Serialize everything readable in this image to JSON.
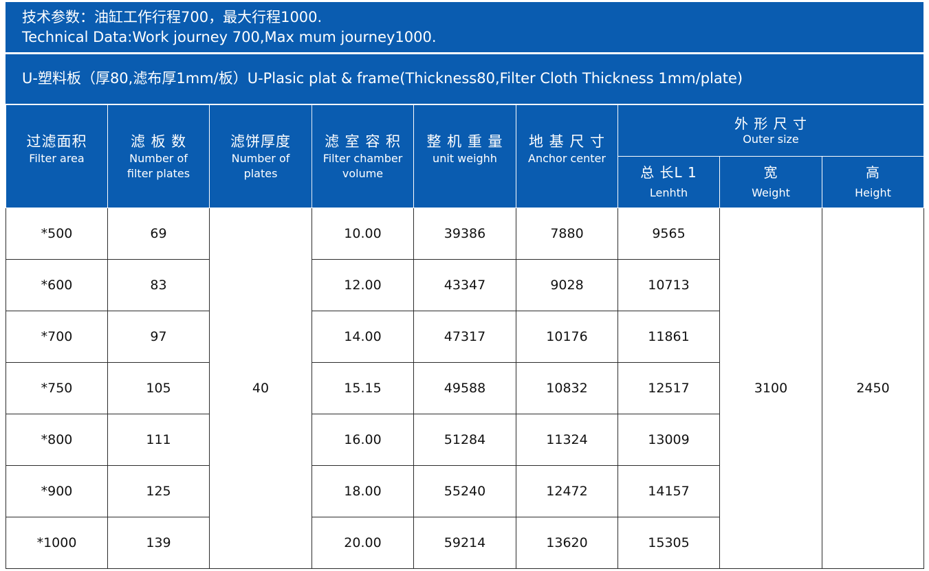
{
  "header": {
    "line_cn": "技术参数：油缸工作行程700，最大行程1000.",
    "line_en": "Technical Data:Work journey 700,Max mum journey1000.",
    "subtitle": "U-塑料板（厚80,滤布厚1mm/板）U-Plasic plat & frame(Thickness80,Filter Cloth Thickness 1mm/plate)"
  },
  "columns": {
    "filter_area": {
      "cn": "过滤面积",
      "en": "Filter area"
    },
    "num_plates": {
      "cn": "滤 板 数",
      "en_1": "Number of",
      "en_2": "filter plates"
    },
    "cake_thickness": {
      "cn": "滤饼厚度",
      "en_1": "Number of",
      "en_2": "plates"
    },
    "chamber_volume": {
      "cn": "滤 室 容 积",
      "en_1": "Filter chamber",
      "en_2": "volume"
    },
    "unit_weight": {
      "cn": "整 机 重 量",
      "en": "unit weighh"
    },
    "anchor": {
      "cn": "地 基 尺 寸",
      "en": "Anchor  center"
    },
    "outer": {
      "cn": "外 形 尺 寸",
      "en": "Outer size"
    },
    "length": {
      "cn": "总 长L 1",
      "en": "Lenhth"
    },
    "width": {
      "cn": "宽",
      "en": "Weight"
    },
    "height": {
      "cn": "高",
      "en": "Height"
    }
  },
  "rows": [
    {
      "area": "*500",
      "plates": "69",
      "volume": "10.00",
      "weight": "39386",
      "anchor": "7880",
      "length": "9565"
    },
    {
      "area": "*600",
      "plates": "83",
      "volume": "12.00",
      "weight": "43347",
      "anchor": "9028",
      "length": "10713"
    },
    {
      "area": "*700",
      "plates": "97",
      "volume": "14.00",
      "weight": "47317",
      "anchor": "10176",
      "length": "11861"
    },
    {
      "area": "*750",
      "plates": "105",
      "volume": "15.15",
      "weight": "49588",
      "anchor": "10832",
      "length": "12517"
    },
    {
      "area": "*800",
      "plates": "111",
      "volume": "16.00",
      "weight": "51284",
      "anchor": "11324",
      "length": "13009"
    },
    {
      "area": "*900",
      "plates": "125",
      "volume": "18.00",
      "weight": "55240",
      "anchor": "12472",
      "length": "14157"
    },
    {
      "area": "*1000",
      "plates": "139",
      "volume": "20.00",
      "weight": "59214",
      "anchor": "13620",
      "length": "15305"
    }
  ],
  "shared": {
    "cake_thickness": "40",
    "width": "3100",
    "height": "2450"
  },
  "colors": {
    "header_blue": "#0a5cb0",
    "grid_line": "#2b2b2b"
  }
}
